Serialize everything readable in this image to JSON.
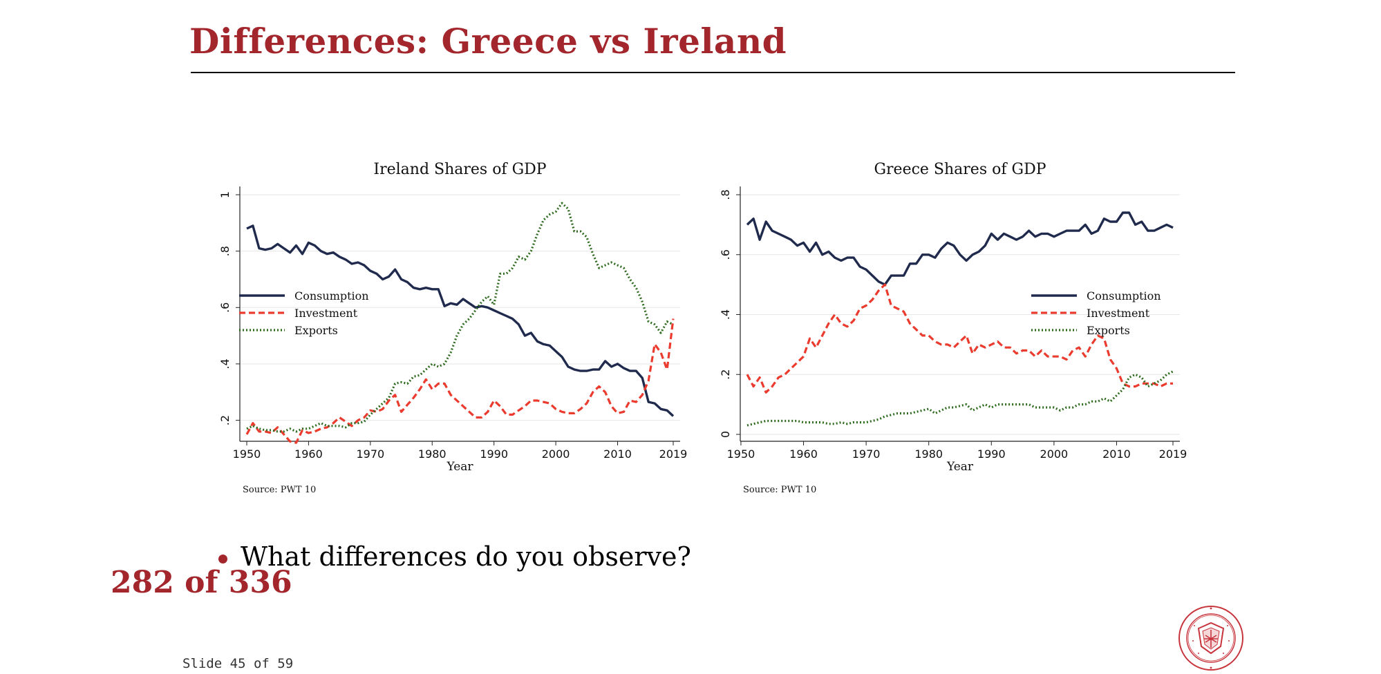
{
  "slide": {
    "title": "Differences:  Greece vs Ireland",
    "bullet": "What differences do you observe?",
    "page_counter": "282 of 336",
    "slide_number": "Slide 45 of 59"
  },
  "colors": {
    "title": "#a3262c",
    "consumption": "#1f2a4d",
    "investment": "#ea3b2e",
    "exports": "#2e6b1e"
  },
  "logo": {
    "name": "Carnegie Mellon University seal",
    "text": "CARNEGIE MELLON UNIVERSITY · PITTSBURGH PENNSYLVANIA 1900"
  },
  "chart_data": [
    {
      "type": "line",
      "title": "Ireland Shares of GDP",
      "xlabel": "Year",
      "ylabel": "",
      "source": "Source: PWT 10",
      "xlim": [
        1950,
        2019
      ],
      "ylim": [
        0.15,
        1.0
      ],
      "xticks": [
        1950,
        1960,
        1970,
        1980,
        1990,
        2000,
        2010,
        2019
      ],
      "yticks": [
        0.2,
        0.4,
        0.6,
        0.8,
        1.0
      ],
      "ytick_labels": [
        ".2",
        ".4",
        ".6",
        ".8",
        "1"
      ],
      "grid": true,
      "legend": "middle-left",
      "series": [
        {
          "name": "Consumption",
          "style": "solid",
          "color": "#1f2a4d",
          "x": [
            1950,
            1951,
            1952,
            1953,
            1954,
            1955,
            1956,
            1957,
            1958,
            1959,
            1960,
            1961,
            1962,
            1963,
            1964,
            1965,
            1966,
            1967,
            1968,
            1969,
            1970,
            1971,
            1972,
            1973,
            1974,
            1975,
            1976,
            1977,
            1978,
            1979,
            1980,
            1981,
            1982,
            1983,
            1984,
            1985,
            1986,
            1987,
            1988,
            1989,
            1990,
            1991,
            1992,
            1993,
            1994,
            1995,
            1996,
            1997,
            1998,
            1999,
            2000,
            2001,
            2002,
            2003,
            2004,
            2005,
            2006,
            2007,
            2008,
            2009,
            2010,
            2011,
            2012,
            2013,
            2014,
            2015,
            2016,
            2017,
            2018,
            2019
          ],
          "y": [
            0.88,
            0.89,
            0.81,
            0.805,
            0.81,
            0.825,
            0.81,
            0.795,
            0.82,
            0.79,
            0.83,
            0.82,
            0.8,
            0.79,
            0.795,
            0.78,
            0.77,
            0.755,
            0.76,
            0.75,
            0.73,
            0.72,
            0.7,
            0.71,
            0.735,
            0.7,
            0.69,
            0.67,
            0.665,
            0.67,
            0.665,
            0.665,
            0.605,
            0.615,
            0.61,
            0.63,
            0.615,
            0.6,
            0.605,
            0.6,
            0.59,
            0.58,
            0.57,
            0.56,
            0.54,
            0.5,
            0.51,
            0.48,
            0.47,
            0.465,
            0.445,
            0.425,
            0.39,
            0.38,
            0.375,
            0.375,
            0.38,
            0.38,
            0.41,
            0.39,
            0.4,
            0.385,
            0.375,
            0.375,
            0.35,
            0.265,
            0.26,
            0.24,
            0.235,
            0.215
          ]
        },
        {
          "name": "Investment",
          "style": "dashed",
          "color": "#ea3b2e",
          "x": [
            1950,
            1951,
            1952,
            1953,
            1954,
            1955,
            1956,
            1957,
            1958,
            1959,
            1960,
            1961,
            1962,
            1963,
            1964,
            1965,
            1966,
            1967,
            1968,
            1969,
            1970,
            1971,
            1972,
            1973,
            1974,
            1975,
            1976,
            1977,
            1978,
            1979,
            1980,
            1981,
            1982,
            1983,
            1984,
            1985,
            1986,
            1987,
            1988,
            1989,
            1990,
            1991,
            1992,
            1993,
            1994,
            1995,
            1996,
            1997,
            1998,
            1999,
            2000,
            2001,
            2002,
            2003,
            2004,
            2005,
            2006,
            2007,
            2008,
            2009,
            2010,
            2011,
            2012,
            2013,
            2014,
            2015,
            2016,
            2017,
            2018,
            2019
          ],
          "y": [
            0.15,
            0.19,
            0.16,
            0.16,
            0.155,
            0.175,
            0.15,
            0.125,
            0.12,
            0.165,
            0.155,
            0.16,
            0.17,
            0.175,
            0.19,
            0.21,
            0.195,
            0.18,
            0.2,
            0.21,
            0.235,
            0.23,
            0.24,
            0.27,
            0.29,
            0.23,
            0.255,
            0.28,
            0.31,
            0.345,
            0.31,
            0.33,
            0.33,
            0.29,
            0.27,
            0.25,
            0.23,
            0.21,
            0.21,
            0.23,
            0.27,
            0.25,
            0.22,
            0.22,
            0.235,
            0.25,
            0.27,
            0.27,
            0.265,
            0.26,
            0.24,
            0.23,
            0.225,
            0.225,
            0.24,
            0.26,
            0.3,
            0.32,
            0.3,
            0.25,
            0.225,
            0.23,
            0.27,
            0.265,
            0.29,
            0.34,
            0.47,
            0.44,
            0.38,
            0.56
          ]
        },
        {
          "name": "Exports",
          "style": "dotted",
          "color": "#2e6b1e",
          "x": [
            1950,
            1951,
            1952,
            1953,
            1954,
            1955,
            1956,
            1957,
            1958,
            1959,
            1960,
            1961,
            1962,
            1963,
            1964,
            1965,
            1966,
            1967,
            1968,
            1969,
            1970,
            1971,
            1972,
            1973,
            1974,
            1975,
            1976,
            1977,
            1978,
            1979,
            1980,
            1981,
            1982,
            1983,
            1984,
            1985,
            1986,
            1987,
            1988,
            1989,
            1990,
            1991,
            1992,
            1993,
            1994,
            1995,
            1996,
            1997,
            1998,
            1999,
            2000,
            2001,
            2002,
            2003,
            2004,
            2005,
            2006,
            2007,
            2008,
            2009,
            2010,
            2011,
            2012,
            2013,
            2014,
            2015,
            2016,
            2017,
            2018,
            2019
          ],
          "y": [
            0.17,
            0.18,
            0.17,
            0.165,
            0.165,
            0.16,
            0.16,
            0.17,
            0.16,
            0.17,
            0.17,
            0.18,
            0.19,
            0.18,
            0.18,
            0.18,
            0.175,
            0.19,
            0.19,
            0.195,
            0.22,
            0.24,
            0.26,
            0.28,
            0.33,
            0.335,
            0.33,
            0.355,
            0.36,
            0.38,
            0.4,
            0.39,
            0.4,
            0.44,
            0.5,
            0.54,
            0.56,
            0.59,
            0.62,
            0.64,
            0.61,
            0.72,
            0.72,
            0.74,
            0.78,
            0.77,
            0.8,
            0.86,
            0.91,
            0.93,
            0.94,
            0.97,
            0.95,
            0.87,
            0.87,
            0.85,
            0.79,
            0.74,
            0.75,
            0.76,
            0.75,
            0.74,
            0.7,
            0.67,
            0.62,
            0.55,
            0.54,
            0.51,
            0.55,
            0.54
          ]
        }
      ]
    },
    {
      "type": "line",
      "title": "Greece Shares of GDP",
      "xlabel": "Year",
      "ylabel": "",
      "source": "Source: PWT 10",
      "xlim": [
        1951,
        2019
      ],
      "ylim": [
        0,
        0.8
      ],
      "xticks": [
        1950,
        1960,
        1970,
        1980,
        1990,
        2000,
        2010,
        2019
      ],
      "yticks": [
        0,
        0.2,
        0.4,
        0.6,
        0.8
      ],
      "ytick_labels": [
        "0",
        ".2",
        ".4",
        ".6",
        ".8"
      ],
      "grid": true,
      "legend": "middle-right",
      "series": [
        {
          "name": "Consumption",
          "style": "solid",
          "color": "#1f2a4d",
          "x": [
            1951,
            1952,
            1953,
            1954,
            1955,
            1956,
            1957,
            1958,
            1959,
            1960,
            1961,
            1962,
            1963,
            1964,
            1965,
            1966,
            1967,
            1968,
            1969,
            1970,
            1971,
            1972,
            1973,
            1974,
            1975,
            1976,
            1977,
            1978,
            1979,
            1980,
            1981,
            1982,
            1983,
            1984,
            1985,
            1986,
            1987,
            1988,
            1989,
            1990,
            1991,
            1992,
            1993,
            1994,
            1995,
            1996,
            1997,
            1998,
            1999,
            2000,
            2001,
            2002,
            2003,
            2004,
            2005,
            2006,
            2007,
            2008,
            2009,
            2010,
            2011,
            2012,
            2013,
            2014,
            2015,
            2016,
            2017,
            2018,
            2019
          ],
          "y": [
            0.7,
            0.72,
            0.65,
            0.71,
            0.68,
            0.67,
            0.66,
            0.65,
            0.63,
            0.64,
            0.61,
            0.64,
            0.6,
            0.61,
            0.59,
            0.58,
            0.59,
            0.59,
            0.56,
            0.55,
            0.53,
            0.51,
            0.5,
            0.53,
            0.53,
            0.53,
            0.57,
            0.57,
            0.6,
            0.6,
            0.59,
            0.62,
            0.64,
            0.63,
            0.6,
            0.58,
            0.6,
            0.61,
            0.63,
            0.67,
            0.65,
            0.67,
            0.66,
            0.65,
            0.66,
            0.68,
            0.66,
            0.67,
            0.67,
            0.66,
            0.67,
            0.68,
            0.68,
            0.68,
            0.7,
            0.67,
            0.68,
            0.72,
            0.71,
            0.71,
            0.74,
            0.74,
            0.7,
            0.71,
            0.68,
            0.68,
            0.69,
            0.7,
            0.69
          ]
        },
        {
          "name": "Investment",
          "style": "dashed",
          "color": "#ea3b2e",
          "x": [
            1951,
            1952,
            1953,
            1954,
            1955,
            1956,
            1957,
            1958,
            1959,
            1960,
            1961,
            1962,
            1963,
            1964,
            1965,
            1966,
            1967,
            1968,
            1969,
            1970,
            1971,
            1972,
            1973,
            1974,
            1975,
            1976,
            1977,
            1978,
            1979,
            1980,
            1981,
            1982,
            1983,
            1984,
            1985,
            1986,
            1987,
            1988,
            1989,
            1990,
            1991,
            1992,
            1993,
            1994,
            1995,
            1996,
            1997,
            1998,
            1999,
            2000,
            2001,
            2002,
            2003,
            2004,
            2005,
            2006,
            2007,
            2008,
            2009,
            2010,
            2011,
            2012,
            2013,
            2014,
            2015,
            2016,
            2017,
            2018,
            2019
          ],
          "y": [
            0.2,
            0.16,
            0.19,
            0.14,
            0.16,
            0.19,
            0.2,
            0.22,
            0.24,
            0.26,
            0.32,
            0.29,
            0.33,
            0.37,
            0.4,
            0.37,
            0.36,
            0.38,
            0.42,
            0.43,
            0.45,
            0.48,
            0.5,
            0.43,
            0.42,
            0.41,
            0.37,
            0.35,
            0.33,
            0.33,
            0.31,
            0.3,
            0.3,
            0.29,
            0.31,
            0.33,
            0.27,
            0.3,
            0.29,
            0.3,
            0.31,
            0.29,
            0.29,
            0.27,
            0.28,
            0.28,
            0.26,
            0.28,
            0.26,
            0.26,
            0.26,
            0.25,
            0.28,
            0.29,
            0.26,
            0.3,
            0.33,
            0.32,
            0.25,
            0.22,
            0.17,
            0.16,
            0.16,
            0.17,
            0.17,
            0.17,
            0.16,
            0.17,
            0.17
          ]
        },
        {
          "name": "Exports",
          "style": "dotted",
          "color": "#2e6b1e",
          "x": [
            1951,
            1952,
            1953,
            1954,
            1955,
            1956,
            1957,
            1958,
            1959,
            1960,
            1961,
            1962,
            1963,
            1964,
            1965,
            1966,
            1967,
            1968,
            1969,
            1970,
            1971,
            1972,
            1973,
            1974,
            1975,
            1976,
            1977,
            1978,
            1979,
            1980,
            1981,
            1982,
            1983,
            1984,
            1985,
            1986,
            1987,
            1988,
            1989,
            1990,
            1991,
            1992,
            1993,
            1994,
            1995,
            1996,
            1997,
            1998,
            1999,
            2000,
            2001,
            2002,
            2003,
            2004,
            2005,
            2006,
            2007,
            2008,
            2009,
            2010,
            2011,
            2012,
            2013,
            2014,
            2015,
            2016,
            2017,
            2018,
            2019
          ],
          "y": [
            0.03,
            0.035,
            0.04,
            0.045,
            0.045,
            0.045,
            0.045,
            0.045,
            0.045,
            0.04,
            0.04,
            0.04,
            0.04,
            0.035,
            0.035,
            0.04,
            0.035,
            0.04,
            0.04,
            0.04,
            0.045,
            0.05,
            0.06,
            0.065,
            0.07,
            0.07,
            0.07,
            0.075,
            0.08,
            0.085,
            0.07,
            0.08,
            0.09,
            0.09,
            0.095,
            0.1,
            0.08,
            0.09,
            0.1,
            0.09,
            0.1,
            0.1,
            0.1,
            0.1,
            0.1,
            0.1,
            0.09,
            0.09,
            0.09,
            0.09,
            0.08,
            0.09,
            0.09,
            0.1,
            0.1,
            0.11,
            0.11,
            0.12,
            0.11,
            0.13,
            0.15,
            0.19,
            0.2,
            0.19,
            0.16,
            0.17,
            0.18,
            0.2,
            0.21
          ]
        }
      ]
    }
  ]
}
